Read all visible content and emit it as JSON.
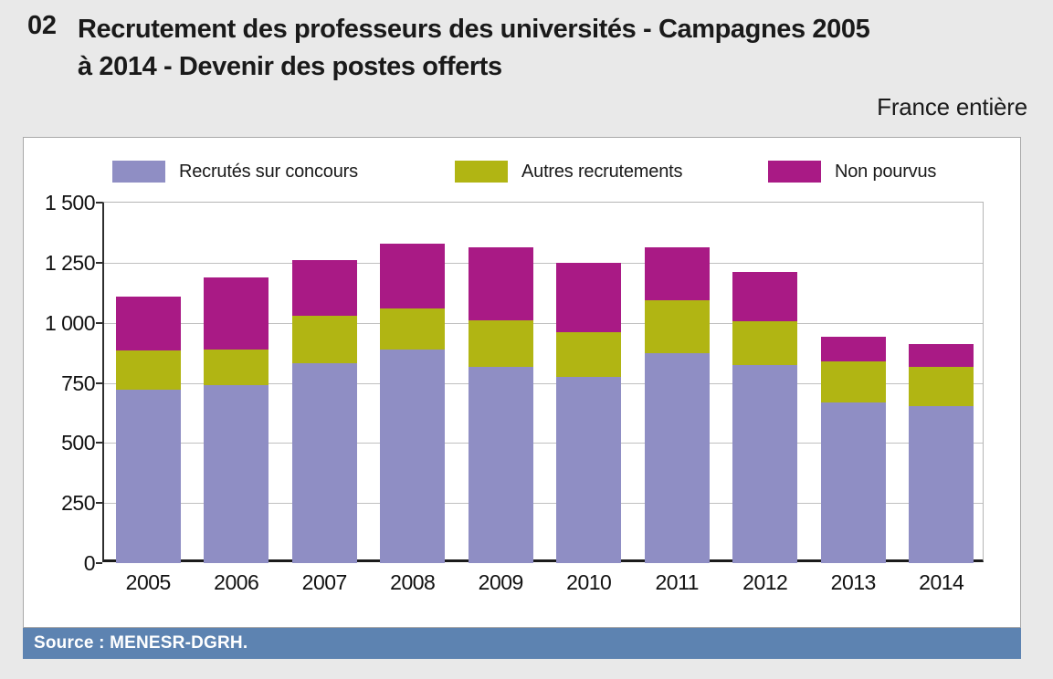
{
  "header": {
    "number": "02",
    "title_line1": "Recrutement des professeurs des universités - Campagnes 2005",
    "title_line2": "à 2014 - Devenir des postes offerts",
    "region_label": "France entière"
  },
  "footer": {
    "source": "Source : MENESR-DGRH."
  },
  "colors": {
    "concours": "#8f8ec4",
    "autres": "#b1b513",
    "non_pourvus": "#a91a85",
    "source_bar": "#5d83b1",
    "panel_bg": "#ffffff",
    "page_bg": "#e9e9e9",
    "gridline": "#c0c0c0"
  },
  "chart_data": {
    "type": "bar",
    "stacked": true,
    "title": "Recrutement des professeurs des universités - Campagnes 2005 à 2014 - Devenir des postes offerts",
    "subtitle": "France entière",
    "categories": [
      "2005",
      "2006",
      "2007",
      "2008",
      "2009",
      "2010",
      "2011",
      "2012",
      "2013",
      "2014"
    ],
    "series": [
      {
        "name": "Recrutés sur concours",
        "color_key": "concours",
        "values": [
          720,
          740,
          830,
          890,
          815,
          775,
          875,
          825,
          670,
          655
        ]
      },
      {
        "name": "Autres recrutements",
        "color_key": "autres",
        "values": [
          165,
          150,
          200,
          170,
          195,
          185,
          220,
          180,
          170,
          160
        ]
      },
      {
        "name": "Non pourvus",
        "color_key": "non_pourvus",
        "values": [
          225,
          300,
          230,
          270,
          305,
          290,
          220,
          205,
          100,
          95
        ]
      }
    ],
    "totals": [
      1110,
      1190,
      1260,
      1330,
      1315,
      1250,
      1315,
      1210,
      940,
      910
    ],
    "xlabel": "",
    "ylabel": "",
    "ylim": [
      0,
      1500
    ],
    "ytick_values": [
      0,
      250,
      500,
      750,
      1000,
      1250,
      1500
    ],
    "ytick_labels": [
      "0",
      "250",
      "500",
      "750",
      "1 000",
      "1 250",
      "1 500"
    ],
    "grid": true,
    "legend_position": "top"
  }
}
